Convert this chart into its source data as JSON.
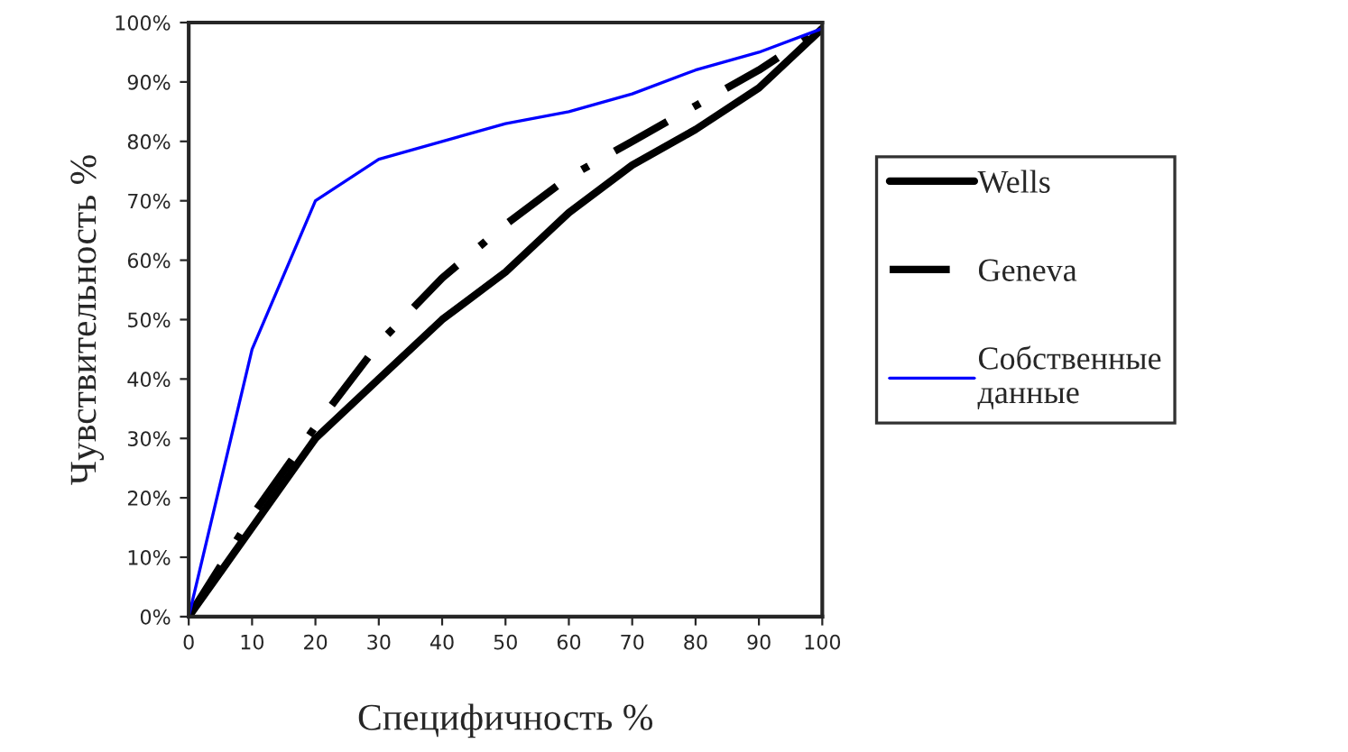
{
  "chart_data": {
    "type": "line",
    "xlabel": "Специфичность %",
    "ylabel": "Чувствительность %",
    "x": [
      0,
      10,
      20,
      30,
      40,
      50,
      60,
      70,
      80,
      90,
      100
    ],
    "series": [
      {
        "name": "Wells",
        "color": "#000000",
        "line_style": "solid",
        "values": [
          0,
          15,
          30,
          40,
          50,
          58,
          68,
          76,
          82,
          89,
          99
        ]
      },
      {
        "name": "Geneva",
        "color": "#000000",
        "line_style": "dashdot",
        "values": [
          0,
          17,
          32,
          46,
          57,
          66,
          74,
          80,
          86,
          92,
          99
        ]
      },
      {
        "name": "Собственные данные",
        "color": "#0000ff",
        "line_style": "solid",
        "values": [
          0,
          45,
          70,
          77,
          80,
          83,
          85,
          88,
          92,
          95,
          99
        ]
      }
    ],
    "xlim": [
      0,
      100
    ],
    "xticks": [
      0,
      10,
      20,
      30,
      40,
      50,
      60,
      70,
      80,
      90,
      100
    ],
    "ylim": [
      0,
      100
    ],
    "yticks": [
      {
        "value": 0,
        "label": "0%"
      },
      {
        "value": 10,
        "label": "10%"
      },
      {
        "value": 20,
        "label": "20%"
      },
      {
        "value": 30,
        "label": "30%"
      },
      {
        "value": 40,
        "label": "40%"
      },
      {
        "value": 50,
        "label": "50%"
      },
      {
        "value": 60,
        "label": "60%"
      },
      {
        "value": 70,
        "label": "70%"
      },
      {
        "value": 80,
        "label": "80%"
      },
      {
        "value": 90,
        "label": "90%"
      },
      {
        "value": 100,
        "label": "100%"
      }
    ],
    "grid": false,
    "legend": "right",
    "marker": "none"
  }
}
